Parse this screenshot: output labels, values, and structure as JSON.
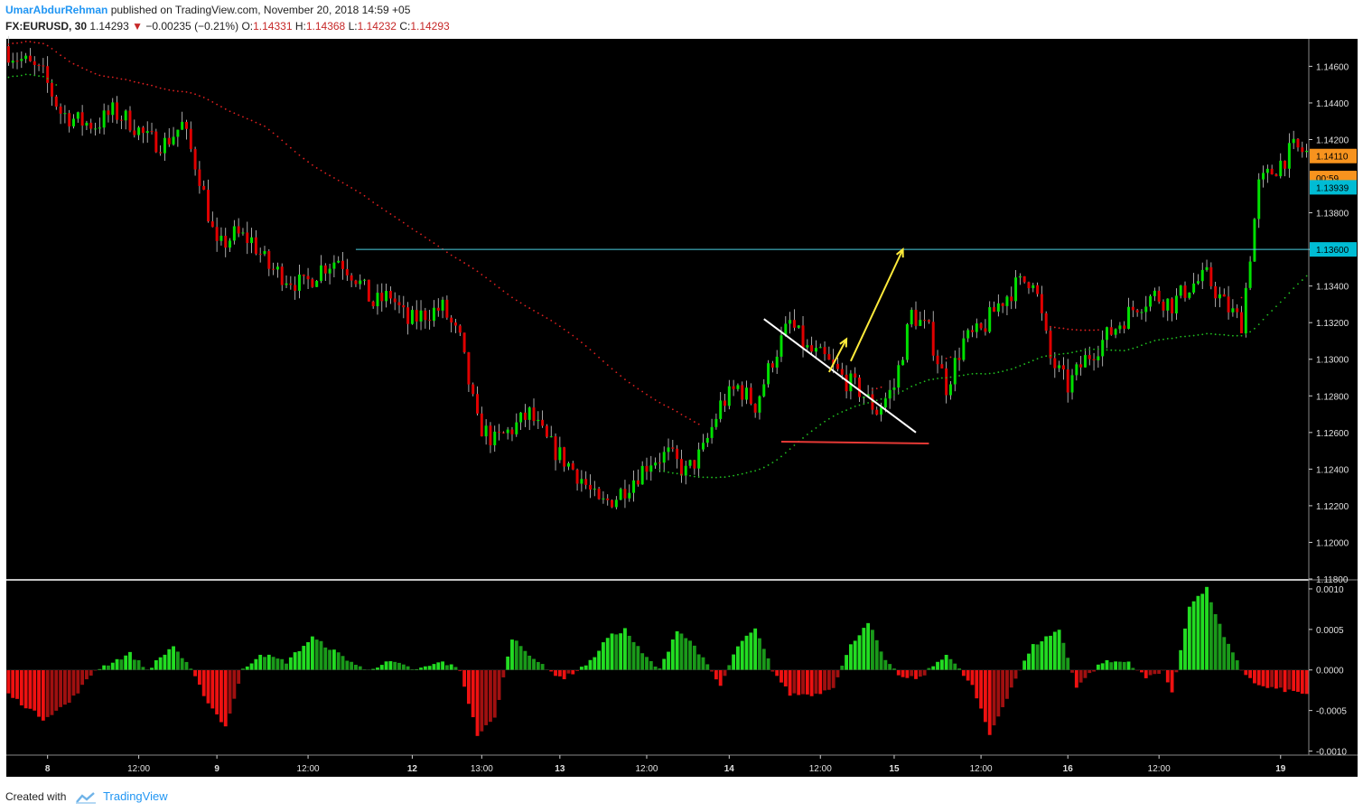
{
  "header": {
    "author": "UmarAbdurRehman",
    "published_text": "published on TradingView.com, November 20, 2018 14:59 +05",
    "symbol": "FX:EURUSD, 30",
    "last": "1.14293",
    "change": "−0.00235 (−0.21%)",
    "o_label": "O:",
    "o_value": "1.14331",
    "h_label": "H:",
    "h_value": "1.14368",
    "l_label": "L:",
    "l_value": "1.14232",
    "c_label": "C:",
    "c_value": "1.14293"
  },
  "footer": {
    "created_with": "Created with",
    "brand": "TradingView"
  },
  "colors": {
    "background": "#000000",
    "up": "#00e000",
    "down": "#e00000",
    "wick": "#d0d0d0",
    "ma_slow": "#e02020",
    "ma_fast": "#20c020",
    "level_line": "#4dd0e1",
    "price_badge": "#f7931e",
    "level_badge": "#00bcd4"
  },
  "chart_data": [
    {
      "type": "candlestick",
      "symbol": "FX:EURUSD",
      "timeframe": "30",
      "ylim": [
        1.118,
        1.1475
      ],
      "y_ticks": [
        "1.14600",
        "1.14400",
        "1.14200",
        "1.13800",
        "1.13600",
        "1.13400",
        "1.13200",
        "1.13000",
        "1.12800",
        "1.12600",
        "1.12400",
        "1.12200",
        "1.12000",
        "1.11800"
      ],
      "x_ticks": [
        "8",
        "12:00",
        "9",
        "12:00",
        "12",
        "13:00",
        "13",
        "12:00",
        "14",
        "12:00",
        "15",
        "12:00",
        "16",
        "12:00",
        "19"
      ],
      "price_badges": {
        "current": "1.14110",
        "countdown": "00:59",
        "ma_value": "1.13939",
        "level": "1.13600"
      },
      "close_path": [
        [
          0,
          1.1468
        ],
        [
          4,
          1.1462
        ],
        [
          8,
          1.1455
        ],
        [
          12,
          1.1435
        ],
        [
          16,
          1.143
        ],
        [
          20,
          1.1428
        ],
        [
          24,
          1.1435
        ],
        [
          28,
          1.143
        ],
        [
          32,
          1.142
        ],
        [
          36,
          1.1418
        ],
        [
          40,
          1.1428
        ],
        [
          44,
          1.14
        ],
        [
          48,
          1.136
        ],
        [
          52,
          1.1368
        ],
        [
          56,
          1.1365
        ],
        [
          60,
          1.135
        ],
        [
          64,
          1.1345
        ],
        [
          68,
          1.134
        ],
        [
          72,
          1.135
        ],
        [
          76,
          1.1355
        ],
        [
          80,
          1.1345
        ],
        [
          84,
          1.133
        ],
        [
          88,
          1.1335
        ],
        [
          92,
          1.132
        ],
        [
          96,
          1.1325
        ],
        [
          100,
          1.1328
        ],
        [
          104,
          1.131
        ],
        [
          108,
          1.1265
        ],
        [
          112,
          1.1255
        ],
        [
          116,
          1.1262
        ],
        [
          120,
          1.127
        ],
        [
          124,
          1.1255
        ],
        [
          128,
          1.1245
        ],
        [
          132,
          1.1235
        ],
        [
          136,
          1.122
        ],
        [
          140,
          1.1225
        ],
        [
          144,
          1.1235
        ],
        [
          148,
          1.1245
        ],
        [
          152,
          1.1248
        ],
        [
          156,
          1.1238
        ],
        [
          160,
          1.125
        ],
        [
          164,
          1.1275
        ],
        [
          168,
          1.1285
        ],
        [
          172,
          1.1275
        ],
        [
          176,
          1.13
        ],
        [
          180,
          1.132
        ],
        [
          184,
          1.1305
        ],
        [
          188,
          1.13
        ],
        [
          192,
          1.129
        ],
        [
          196,
          1.1283
        ],
        [
          200,
          1.1272
        ],
        [
          204,
          1.1285
        ],
        [
          208,
          1.1325
        ],
        [
          212,
          1.1315
        ],
        [
          216,
          1.1285
        ],
        [
          220,
          1.131
        ],
        [
          224,
          1.1315
        ],
        [
          228,
          1.133
        ],
        [
          232,
          1.134
        ],
        [
          236,
          1.1345
        ],
        [
          240,
          1.13
        ],
        [
          244,
          1.1285
        ],
        [
          248,
          1.13
        ],
        [
          252,
          1.131
        ],
        [
          256,
          1.132
        ],
        [
          260,
          1.133
        ],
        [
          264,
          1.1335
        ],
        [
          268,
          1.133
        ],
        [
          272,
          1.134
        ],
        [
          276,
          1.1345
        ],
        [
          280,
          1.133
        ],
        [
          284,
          1.132
        ],
        [
          288,
          1.1395
        ],
        [
          292,
          1.1405
        ],
        [
          296,
          1.1415
        ],
        [
          300,
          1.1412
        ]
      ],
      "bar_count": 300,
      "x_tick_bars": [
        9,
        30,
        48,
        69,
        93,
        109,
        127,
        147,
        166,
        187,
        204,
        224,
        244,
        265,
        293
      ],
      "annotations": {
        "level_line": {
          "price": 1.136,
          "from_bar": 80,
          "to_bar": 300
        },
        "white_trendline": {
          "from": [
            174,
            1.1322
          ],
          "to": [
            209,
            1.126
          ]
        },
        "red_line": {
          "from": [
            178,
            1.1255
          ],
          "to": [
            212,
            1.1254
          ]
        },
        "yellow_arrow_1": {
          "from": [
            189,
            1.1293
          ],
          "to": [
            193,
            1.1311
          ]
        },
        "yellow_arrow_2": {
          "from": [
            194,
            1.1299
          ],
          "to": [
            206,
            1.136
          ]
        }
      }
    },
    {
      "type": "histogram",
      "name": "oscillator",
      "ylim": [
        -0.00105,
        0.0011
      ],
      "y_ticks": [
        "0.0010",
        "0.0005",
        "0.0000",
        "-0.0005",
        "-0.0010"
      ],
      "profile": [
        [
          0,
          -0.0003
        ],
        [
          8,
          -0.0006
        ],
        [
          14,
          -0.0004
        ],
        [
          20,
          0.0
        ],
        [
          28,
          0.0002
        ],
        [
          32,
          0.0
        ],
        [
          38,
          0.0003
        ],
        [
          42,
          0.0
        ],
        [
          46,
          -0.0004
        ],
        [
          50,
          -0.0007
        ],
        [
          54,
          0.0
        ],
        [
          58,
          0.0002
        ],
        [
          64,
          0.0001
        ],
        [
          70,
          0.0004
        ],
        [
          76,
          0.0002
        ],
        [
          82,
          0.0
        ],
        [
          88,
          0.0001
        ],
        [
          94,
          0.0
        ],
        [
          100,
          0.0001
        ],
        [
          104,
          0.0
        ],
        [
          108,
          -0.0008
        ],
        [
          112,
          -0.0006
        ],
        [
          116,
          0.0004
        ],
        [
          120,
          0.0002
        ],
        [
          124,
          0.0
        ],
        [
          128,
          -0.0001
        ],
        [
          134,
          0.0001
        ],
        [
          138,
          0.0004
        ],
        [
          142,
          0.0005
        ],
        [
          146,
          0.0002
        ],
        [
          150,
          0.0
        ],
        [
          154,
          0.0005
        ],
        [
          158,
          0.0003
        ],
        [
          164,
          -0.0002
        ],
        [
          168,
          0.0003
        ],
        [
          172,
          0.0005
        ],
        [
          176,
          0.0
        ],
        [
          180,
          -0.0003
        ],
        [
          186,
          -0.0003
        ],
        [
          190,
          -0.0002
        ],
        [
          194,
          0.0003
        ],
        [
          198,
          0.0006
        ],
        [
          202,
          0.0001
        ],
        [
          206,
          -0.0001
        ],
        [
          210,
          -0.0001
        ],
        [
          216,
          0.0002
        ],
        [
          222,
          -0.0002
        ],
        [
          226,
          -0.0008
        ],
        [
          232,
          -0.0001
        ],
        [
          236,
          0.0003
        ],
        [
          242,
          0.0005
        ],
        [
          246,
          -0.0002
        ],
        [
          252,
          0.0001
        ],
        [
          258,
          0.0001
        ],
        [
          262,
          -0.0001
        ],
        [
          266,
          0.0
        ],
        [
          268,
          -0.0003
        ],
        [
          272,
          0.0008
        ],
        [
          276,
          0.001
        ],
        [
          280,
          0.0004
        ],
        [
          284,
          0.0
        ],
        [
          288,
          -0.0002
        ],
        [
          300,
          -0.0003
        ]
      ]
    }
  ]
}
